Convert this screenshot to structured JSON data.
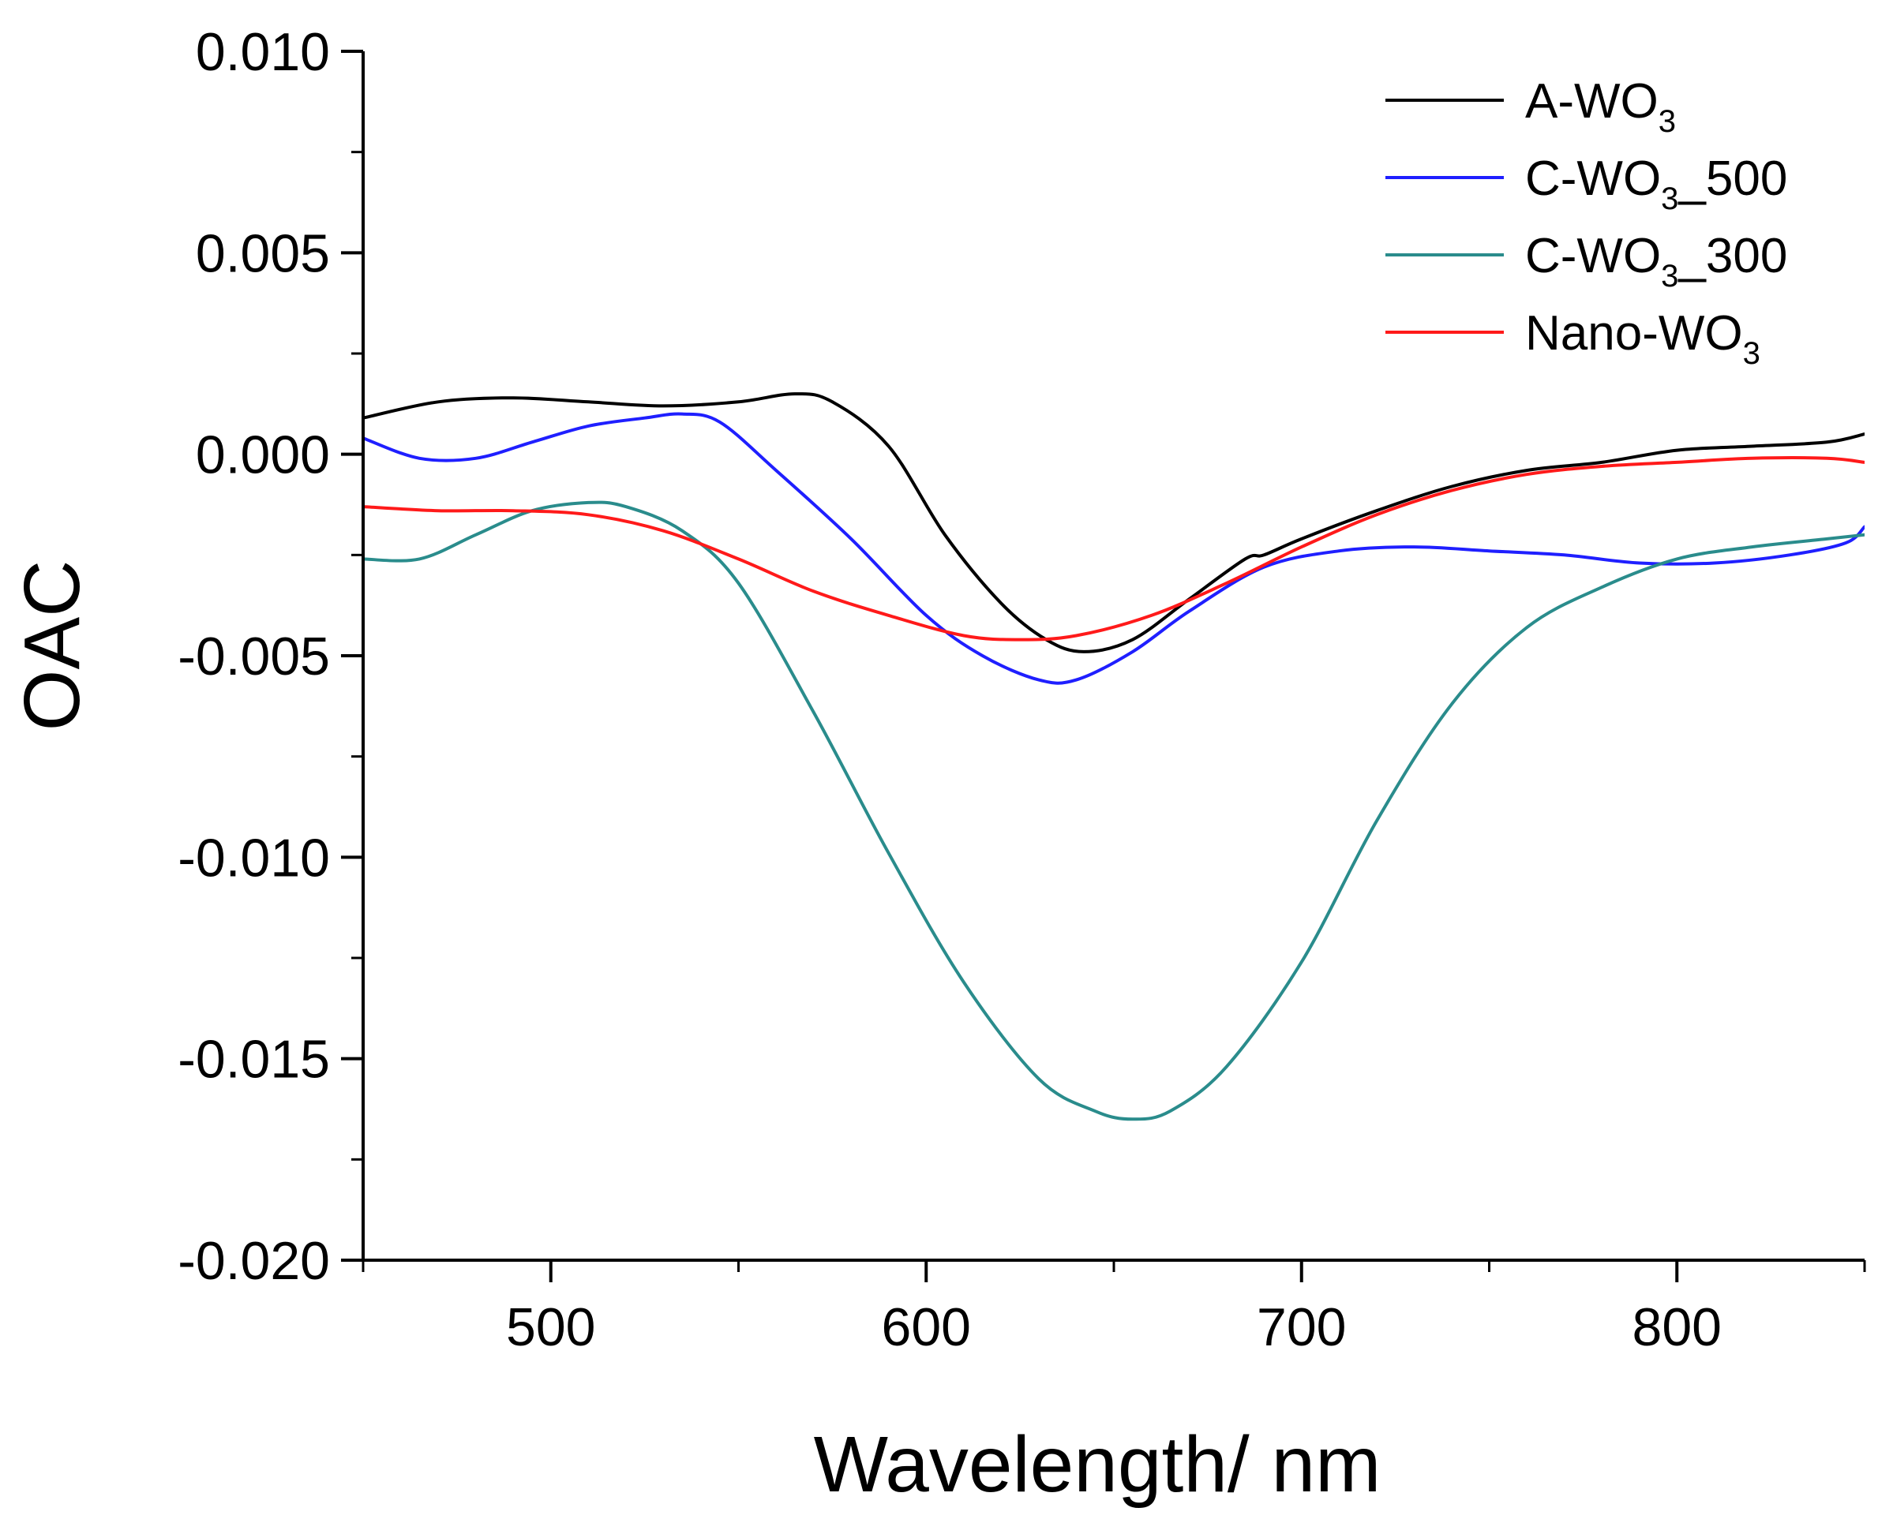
{
  "chart_data": {
    "type": "line",
    "title": "",
    "xlabel": "Wavelength/ nm",
    "ylabel": "OAC",
    "xlim": [
      450,
      850
    ],
    "ylim": [
      -0.02,
      0.01
    ],
    "x_ticks": [
      500,
      600,
      700,
      800
    ],
    "x_tick_labels": [
      "500",
      "600",
      "700",
      "800"
    ],
    "x_minor_step": 50,
    "y_ticks": [
      0.01,
      0.005,
      0.0,
      -0.005,
      -0.01,
      -0.015,
      -0.02
    ],
    "y_tick_labels": [
      "0.010",
      "0.005",
      "0.000",
      "-0.005",
      "-0.010",
      "-0.015",
      "-0.020"
    ],
    "y_minor_step": 0.0025,
    "grid": false,
    "legend_position": "top-right",
    "series": [
      {
        "name": "A-WO3",
        "label_main": "A-WO",
        "label_sub": "3",
        "label_tail": "",
        "color": "#000000",
        "x": [
          450,
          470,
          490,
          510,
          530,
          550,
          565,
          575,
          590,
          605,
          620,
          632,
          642,
          655,
          670,
          685,
          690,
          700,
          720,
          740,
          760,
          780,
          800,
          820,
          840,
          850
        ],
        "y": [
          0.0009,
          0.0013,
          0.0014,
          0.0013,
          0.0012,
          0.0013,
          0.0015,
          0.0013,
          0.0002,
          -0.002,
          -0.0037,
          -0.0046,
          -0.0049,
          -0.0046,
          -0.0036,
          -0.0026,
          -0.0025,
          -0.0021,
          -0.0014,
          -0.0008,
          -0.0004,
          -0.0002,
          0.0001,
          0.0002,
          0.0003,
          0.0005
        ]
      },
      {
        "name": "C-WO3_500",
        "label_main": "C-WO",
        "label_sub": "3",
        "label_tail": "_500",
        "color": "#1f1fff",
        "x": [
          450,
          465,
          480,
          495,
          510,
          525,
          535,
          545,
          560,
          580,
          600,
          615,
          630,
          640,
          655,
          670,
          690,
          710,
          730,
          750,
          770,
          790,
          810,
          830,
          845,
          850
        ],
        "y": [
          0.0004,
          -0.0001,
          -0.0001,
          0.0003,
          0.0007,
          0.0009,
          0.001,
          0.0008,
          -0.0004,
          -0.0021,
          -0.004,
          -0.005,
          -0.0056,
          -0.0056,
          -0.0049,
          -0.0039,
          -0.0028,
          -0.0024,
          -0.0023,
          -0.0024,
          -0.0025,
          -0.0027,
          -0.0027,
          -0.0025,
          -0.0022,
          -0.0018
        ]
      },
      {
        "name": "C-WO3_300",
        "label_main": "C-WO",
        "label_sub": "3",
        "label_tail": "_300",
        "color": "#2a8c8c",
        "x": [
          450,
          465,
          480,
          495,
          510,
          520,
          535,
          550,
          570,
          590,
          610,
          630,
          645,
          655,
          665,
          680,
          700,
          720,
          740,
          760,
          780,
          800,
          820,
          840,
          850
        ],
        "y": [
          -0.0026,
          -0.0026,
          -0.002,
          -0.0014,
          -0.0012,
          -0.0013,
          -0.0019,
          -0.0032,
          -0.0064,
          -0.0099,
          -0.0131,
          -0.0155,
          -0.0163,
          -0.0165,
          -0.0163,
          -0.0152,
          -0.0126,
          -0.0091,
          -0.0062,
          -0.0043,
          -0.0033,
          -0.0026,
          -0.0023,
          -0.0021,
          -0.002
        ]
      },
      {
        "name": "Nano-WO3",
        "label_main": "Nano-WO",
        "label_sub": "3",
        "label_tail": "",
        "color": "#ff1a1a",
        "x": [
          450,
          470,
          490,
          510,
          530,
          550,
          570,
          590,
          610,
          625,
          640,
          660,
          680,
          700,
          720,
          740,
          760,
          780,
          800,
          820,
          840,
          850
        ],
        "y": [
          -0.0013,
          -0.0014,
          -0.0014,
          -0.0015,
          -0.0019,
          -0.0026,
          -0.0034,
          -0.004,
          -0.0045,
          -0.0046,
          -0.0045,
          -0.004,
          -0.0032,
          -0.0023,
          -0.0015,
          -0.0009,
          -0.0005,
          -0.0003,
          -0.0002,
          -0.0001,
          -0.0001,
          -0.0002
        ]
      }
    ]
  }
}
